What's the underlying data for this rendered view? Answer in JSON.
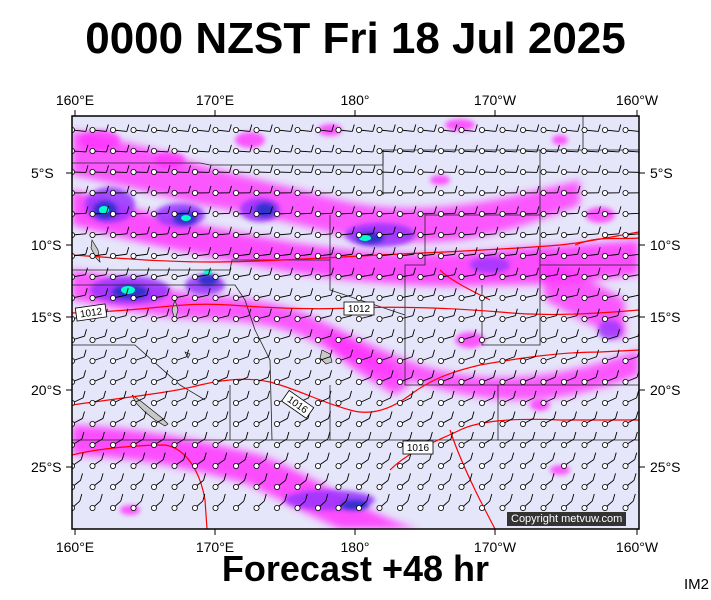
{
  "title": "0000 NZST Fri 18 Jul 2025",
  "subtitle": "Forecast +48 hr",
  "code": "IM2",
  "copyright": "Copyright metvuw.com",
  "longitude_labels": [
    "160°E",
    "170°E",
    "180°",
    "170°W",
    "160°W"
  ],
  "latitude_labels": [
    "5°S",
    "10°S",
    "15°S",
    "20°S",
    "25°S"
  ],
  "isobars": [
    {
      "label": "1012",
      "value": 1012
    },
    {
      "label": "1012",
      "value": 1012
    },
    {
      "label": "1016",
      "value": 1016
    },
    {
      "label": "1016",
      "value": 1016
    }
  ],
  "colors": {
    "ocean": "#e6e6fa",
    "isobar": "#ff0000",
    "rain_light": "#ff00ff",
    "rain_medium": "#9933ff",
    "rain_heavy": "#3333cc",
    "rain_extreme": "#00ffcc",
    "border": "#000000"
  }
}
